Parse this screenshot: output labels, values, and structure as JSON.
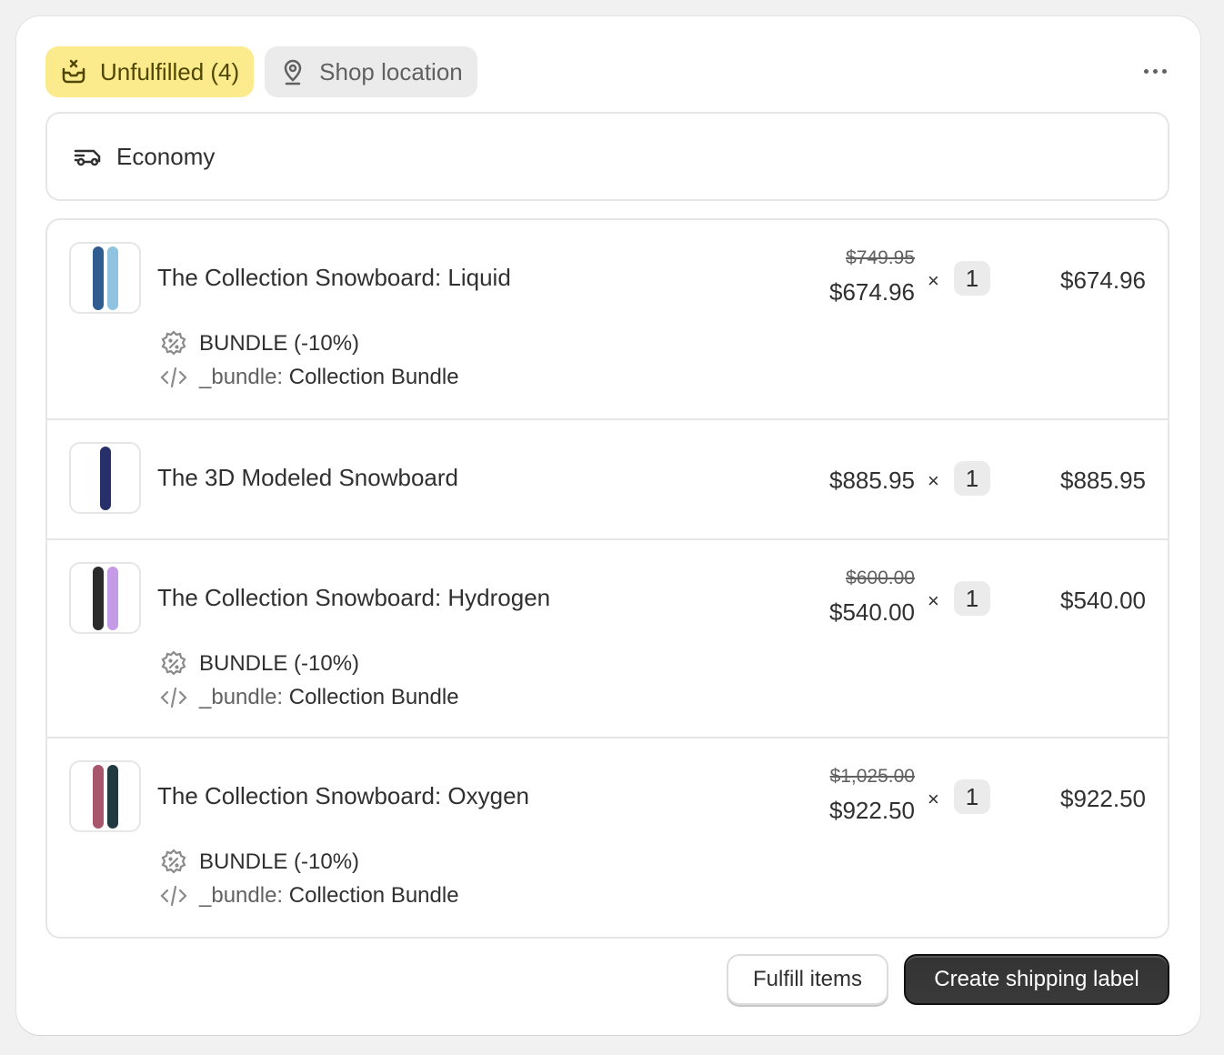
{
  "header": {
    "status_tab": "Unfulfilled (4)",
    "location_tab": "Shop location",
    "more_label": "More actions",
    "status_color": "#fceb8c"
  },
  "shipping": {
    "method": "Economy"
  },
  "items": [
    {
      "title": "The Collection Snowboard: Liquid",
      "original_price": "$749.95",
      "price": "$674.96",
      "times": "×",
      "quantity": "1",
      "total": "$674.96",
      "discount": "BUNDLE (-10%)",
      "property_key": "_bundle:",
      "property_value": "Collection Bundle",
      "colors": [
        "#2f5d8f",
        "#8fc3e0"
      ]
    },
    {
      "title": "The 3D Modeled Snowboard",
      "price": "$885.95",
      "times": "×",
      "quantity": "1",
      "total": "$885.95",
      "colors": [
        "#27306b"
      ]
    },
    {
      "title": "The Collection Snowboard: Hydrogen",
      "original_price": "$600.00",
      "price": "$540.00",
      "times": "×",
      "quantity": "1",
      "total": "$540.00",
      "discount": "BUNDLE (-10%)",
      "property_key": "_bundle:",
      "property_value": "Collection Bundle",
      "colors": [
        "#2b2b2b",
        "#c59ae6"
      ]
    },
    {
      "title": "The Collection Snowboard: Oxygen",
      "original_price": "$1,025.00",
      "price": "$922.50",
      "times": "×",
      "quantity": "1",
      "total": "$922.50",
      "discount": "BUNDLE (-10%)",
      "property_key": "_bundle:",
      "property_value": "Collection Bundle",
      "colors": [
        "#a8566b",
        "#1f3a40"
      ]
    }
  ],
  "actions": {
    "fulfill": "Fulfill items",
    "create_label": "Create shipping label"
  }
}
